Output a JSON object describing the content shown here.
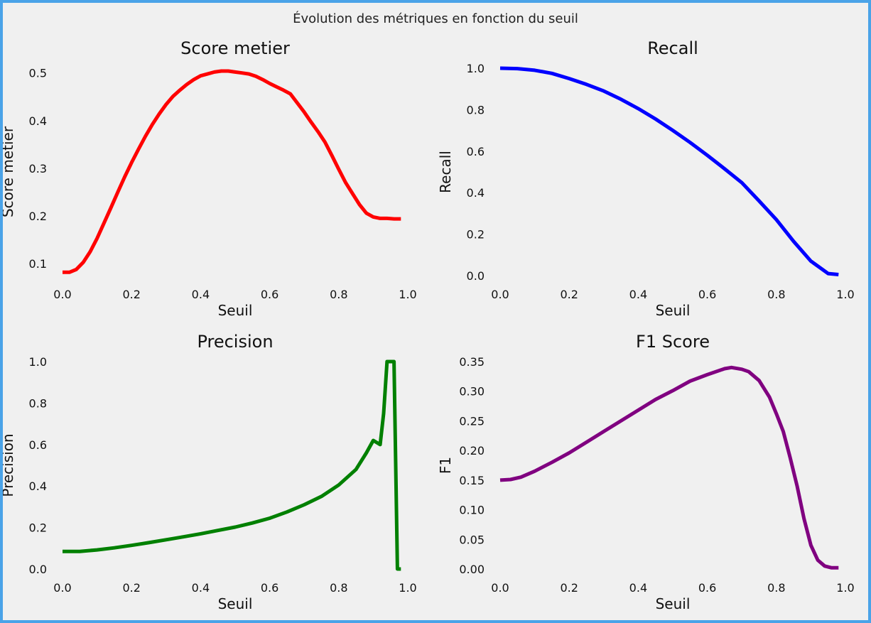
{
  "figure": {
    "suptitle": "Évolution des métriques en fonction du seuil"
  },
  "chart_data": [
    {
      "type": "line",
      "title": "Score metier",
      "xlabel": "Seuil",
      "ylabel": "Score metier",
      "color": "#ff0000",
      "xlim": [
        0.0,
        1.0
      ],
      "ylim": [
        0.075,
        0.51
      ],
      "xticks": [
        "0.0",
        "0.2",
        "0.4",
        "0.6",
        "0.8",
        "1.0"
      ],
      "yticks": [
        "0.1",
        "0.2",
        "0.3",
        "0.4",
        "0.5"
      ],
      "grid": false,
      "x": [
        0.0,
        0.02,
        0.04,
        0.06,
        0.08,
        0.1,
        0.12,
        0.14,
        0.16,
        0.18,
        0.2,
        0.22,
        0.24,
        0.26,
        0.28,
        0.3,
        0.32,
        0.34,
        0.36,
        0.38,
        0.4,
        0.42,
        0.44,
        0.46,
        0.48,
        0.5,
        0.52,
        0.54,
        0.56,
        0.58,
        0.6,
        0.62,
        0.64,
        0.66,
        0.68,
        0.7,
        0.72,
        0.74,
        0.76,
        0.78,
        0.8,
        0.82,
        0.84,
        0.86,
        0.88,
        0.9,
        0.92,
        0.94,
        0.96,
        0.98
      ],
      "y": [
        0.082,
        0.082,
        0.088,
        0.103,
        0.125,
        0.153,
        0.185,
        0.217,
        0.25,
        0.282,
        0.312,
        0.34,
        0.367,
        0.392,
        0.414,
        0.434,
        0.451,
        0.464,
        0.476,
        0.486,
        0.494,
        0.498,
        0.502,
        0.504,
        0.504,
        0.502,
        0.5,
        0.498,
        0.493,
        0.486,
        0.478,
        0.471,
        0.464,
        0.456,
        0.437,
        0.418,
        0.397,
        0.377,
        0.355,
        0.327,
        0.298,
        0.27,
        0.247,
        0.224,
        0.206,
        0.198,
        0.195,
        0.195,
        0.194,
        0.194
      ]
    },
    {
      "type": "line",
      "title": "Recall",
      "xlabel": "Seuil",
      "ylabel": "Recall",
      "color": "#0000ff",
      "xlim": [
        0.0,
        1.0
      ],
      "ylim": [
        0.0,
        1.0
      ],
      "xticks": [
        "0.0",
        "0.2",
        "0.4",
        "0.6",
        "0.8",
        "1.0"
      ],
      "yticks": [
        "0.0",
        "0.2",
        "0.4",
        "0.6",
        "0.8",
        "1.0"
      ],
      "grid": false,
      "x": [
        0.0,
        0.05,
        0.1,
        0.15,
        0.2,
        0.25,
        0.3,
        0.35,
        0.4,
        0.45,
        0.5,
        0.55,
        0.6,
        0.65,
        0.7,
        0.75,
        0.8,
        0.85,
        0.9,
        0.95,
        0.98
      ],
      "y": [
        1.0,
        0.998,
        0.99,
        0.975,
        0.95,
        0.922,
        0.89,
        0.85,
        0.805,
        0.755,
        0.7,
        0.642,
        0.58,
        0.515,
        0.448,
        0.36,
        0.27,
        0.165,
        0.07,
        0.01,
        0.005
      ]
    },
    {
      "type": "line",
      "title": "Precision",
      "xlabel": "Seuil",
      "ylabel": "Precision",
      "color": "#008000",
      "xlim": [
        0.0,
        1.0
      ],
      "ylim": [
        0.0,
        1.0
      ],
      "xticks": [
        "0.0",
        "0.2",
        "0.4",
        "0.6",
        "0.8",
        "1.0"
      ],
      "yticks": [
        "0.0",
        "0.2",
        "0.4",
        "0.6",
        "0.8",
        "1.0"
      ],
      "grid": false,
      "x": [
        0.0,
        0.05,
        0.1,
        0.15,
        0.2,
        0.25,
        0.3,
        0.35,
        0.4,
        0.45,
        0.5,
        0.55,
        0.6,
        0.65,
        0.7,
        0.75,
        0.8,
        0.85,
        0.88,
        0.9,
        0.92,
        0.93,
        0.94,
        0.96,
        0.97,
        0.98
      ],
      "y": [
        0.085,
        0.085,
        0.092,
        0.102,
        0.114,
        0.127,
        0.141,
        0.155,
        0.17,
        0.186,
        0.202,
        0.222,
        0.245,
        0.275,
        0.31,
        0.35,
        0.405,
        0.48,
        0.56,
        0.62,
        0.6,
        0.75,
        1.0,
        1.0,
        0.0,
        0.0
      ]
    },
    {
      "type": "line",
      "title": "F1 Score",
      "xlabel": "Seuil",
      "ylabel": "F1",
      "color": "#800080",
      "xlim": [
        0.0,
        1.0
      ],
      "ylim": [
        0.0,
        0.35
      ],
      "xticks": [
        "0.0",
        "0.2",
        "0.4",
        "0.6",
        "0.8",
        "1.0"
      ],
      "yticks": [
        "0.00",
        "0.05",
        "0.10",
        "0.15",
        "0.20",
        "0.25",
        "0.30",
        "0.35"
      ],
      "grid": false,
      "x": [
        0.0,
        0.03,
        0.06,
        0.1,
        0.15,
        0.2,
        0.25,
        0.3,
        0.35,
        0.4,
        0.45,
        0.5,
        0.55,
        0.6,
        0.65,
        0.67,
        0.7,
        0.72,
        0.75,
        0.78,
        0.8,
        0.82,
        0.84,
        0.86,
        0.88,
        0.9,
        0.92,
        0.94,
        0.96,
        0.98
      ],
      "y": [
        0.15,
        0.151,
        0.155,
        0.165,
        0.18,
        0.196,
        0.214,
        0.232,
        0.25,
        0.268,
        0.286,
        0.301,
        0.317,
        0.328,
        0.338,
        0.34,
        0.337,
        0.333,
        0.318,
        0.29,
        0.262,
        0.232,
        0.188,
        0.14,
        0.085,
        0.04,
        0.015,
        0.005,
        0.002,
        0.002
      ]
    }
  ]
}
